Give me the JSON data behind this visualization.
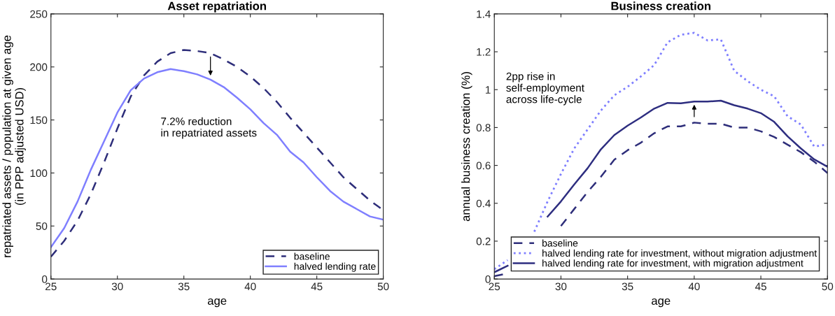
{
  "chart_data": [
    {
      "type": "line",
      "title": "Asset repatriation",
      "xlabel": "age",
      "ylabel": "repatriated assets / population at given age\n(in PPP adjusted USD)",
      "x": [
        25,
        26,
        27,
        28,
        29,
        30,
        31,
        32,
        33,
        34,
        35,
        36,
        37,
        38,
        39,
        40,
        41,
        42,
        43,
        44,
        45,
        46,
        47,
        48,
        49,
        50
      ],
      "series": [
        {
          "name": "baseline",
          "color": "#2e2e7a",
          "line_style": "dashed",
          "values": [
            21,
            36,
            55,
            80,
            110,
            142,
            172,
            192,
            205,
            213,
            216,
            215,
            213,
            207,
            200,
            191,
            180,
            167,
            152,
            138,
            124,
            110,
            96,
            85,
            74,
            65
          ]
        },
        {
          "name": "halved lending rate",
          "color": "#7f7fff",
          "line_style": "solid",
          "values": [
            30,
            48,
            73,
            103,
            130,
            157,
            178,
            189,
            195,
            198,
            196,
            193,
            188,
            181,
            171,
            160,
            147,
            136,
            120,
            110,
            96,
            83,
            73,
            66,
            59,
            56
          ]
        }
      ],
      "annotations": [
        "7.2% reduction\nin repatriated assets"
      ],
      "xlim": [
        25,
        50
      ],
      "xticks": [
        25,
        30,
        35,
        40,
        45,
        50
      ],
      "ylim": [
        0,
        250
      ],
      "yticks": [
        0,
        50,
        100,
        150,
        200,
        250
      ],
      "grid": false,
      "legend": "bottom right",
      "marker": "none"
    },
    {
      "type": "line",
      "title": "Business creation",
      "xlabel": "age",
      "ylabel": "annual business creation (%)",
      "x": [
        25,
        26,
        27,
        28,
        29,
        30,
        31,
        32,
        33,
        34,
        35,
        36,
        37,
        38,
        39,
        40,
        41,
        42,
        43,
        44,
        45,
        46,
        47,
        48,
        49,
        50
      ],
      "series": [
        {
          "name": "baseline",
          "color": "#2e2e7a",
          "line_style": "dashed",
          "values": [
            0.015,
            0.03,
            null,
            null,
            null,
            0.28,
            0.37,
            0.46,
            0.54,
            0.63,
            0.68,
            0.72,
            0.77,
            0.806,
            0.806,
            0.826,
            0.82,
            0.82,
            0.8,
            0.8,
            0.78,
            0.75,
            0.71,
            0.67,
            0.62,
            0.56
          ]
        },
        {
          "name": "halved lending rate for investment, without migration adjustment",
          "color": "#7f7fff",
          "line_style": "dotted",
          "values": [
            0.052,
            0.1,
            null,
            0.25,
            0.41,
            0.555,
            0.69,
            0.79,
            0.89,
            0.97,
            1.015,
            1.07,
            1.13,
            1.25,
            1.29,
            1.3,
            1.26,
            1.265,
            1.1,
            1.045,
            1.0,
            0.965,
            0.86,
            0.816,
            0.7,
            0.71
          ]
        },
        {
          "name": "halved lending rate for investment, with migration adjustment",
          "color": "#2e2e80",
          "line_style": "solid",
          "values": [
            0.036,
            0.07,
            null,
            null,
            0.33,
            0.41,
            0.5,
            0.585,
            0.685,
            0.76,
            0.81,
            0.853,
            0.9,
            0.93,
            0.928,
            0.937,
            0.937,
            0.942,
            0.918,
            0.9,
            0.876,
            0.83,
            0.754,
            0.69,
            0.632,
            0.593
          ]
        }
      ],
      "annotations": [
        "2pp rise in\nself-employment\nacross life-cycle"
      ],
      "xlim": [
        25,
        50
      ],
      "xticks": [
        25,
        30,
        35,
        40,
        45,
        50
      ],
      "ylim": [
        0,
        1.4
      ],
      "yticks": [
        0,
        0.2,
        0.4,
        0.6,
        0.8,
        1,
        1.2,
        1.4
      ],
      "grid": false,
      "legend": "bottom",
      "marker": "none"
    }
  ]
}
